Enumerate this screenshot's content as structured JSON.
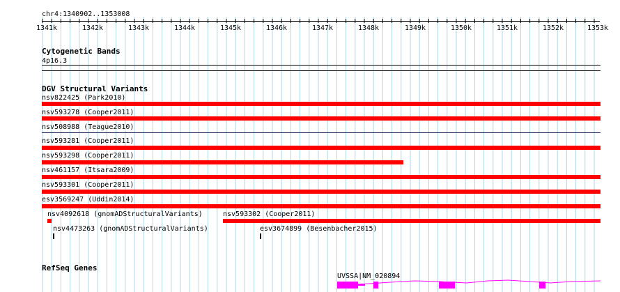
{
  "ruler": {
    "location": "chr4:1340902..1353008",
    "labels": [
      "1341k",
      "1342k",
      "1343k",
      "1344k",
      "1345k",
      "1346k",
      "1347k",
      "1348k",
      "1349k",
      "1350k",
      "1351k",
      "1352k",
      "1353k"
    ]
  },
  "tracks": {
    "cytoband": {
      "title": "Cytogenetic Bands",
      "band": "4p16.3"
    },
    "dgv": {
      "title": "DGV Structural Variants",
      "variants": [
        "nsv822425 (Park2010)",
        "nsv593278 (Cooper2011)",
        "nsv508988 (Teague2010)",
        "nsv593281 (Cooper2011)",
        "nsv593298 (Cooper2011)",
        "nsv461157 (Itsara2009)",
        "nsv593301 (Cooper2011)",
        "esv3569247 (Uddin2014)",
        "nsv4092618 (gnomADStructuralVariants)",
        "nsv593302 (Cooper2011)",
        "nsv4473263 (gnomADStructuralVariants)",
        "esv3674899 (Besenbacher2015)"
      ]
    },
    "refseq": {
      "title": "RefSeq Genes",
      "gene_label": "UVSSA|NM_020894"
    }
  },
  "colors": {
    "variant": "#ff0000",
    "variant_thin": "#0b1a4a",
    "gene": "#ff00ff",
    "grid": "#add8e6"
  }
}
